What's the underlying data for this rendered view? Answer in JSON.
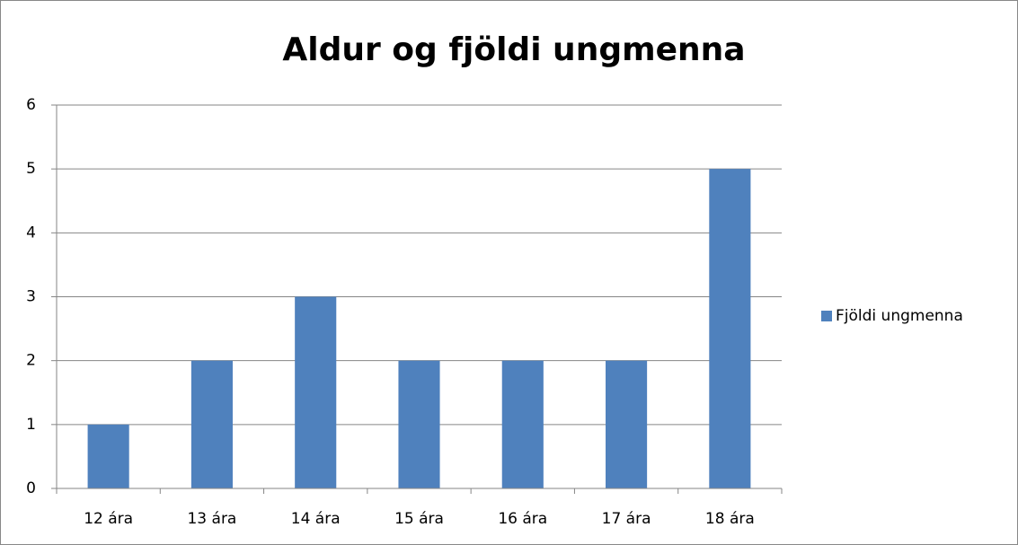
{
  "chart_data": {
    "type": "bar",
    "title": "Aldur og fjöldi ungmenna",
    "categories": [
      "12 ára",
      "13 ára",
      "14 ára",
      "15 ára",
      "16 ára",
      "17 ára",
      "18 ára"
    ],
    "series": [
      {
        "name": "Fjöldi ungmenna",
        "color": "#4f81bd",
        "values": [
          1,
          2,
          3,
          2,
          2,
          2,
          5
        ]
      }
    ],
    "ylim": [
      0,
      6
    ],
    "yticks": [
      0,
      1,
      2,
      3,
      4,
      5,
      6
    ],
    "grid": true,
    "legend": "right"
  }
}
